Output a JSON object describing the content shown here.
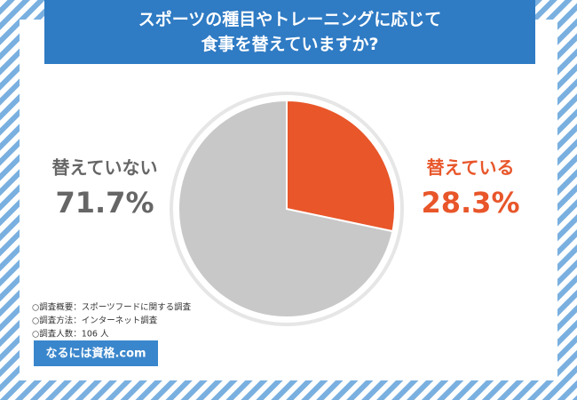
{
  "chart_data": {
    "type": "pie",
    "title": "スポーツの種目やトレーニングに応じて\n食事を替えていますか?",
    "categories": [
      "替えている",
      "替えていない"
    ],
    "values": [
      28.3,
      71.7
    ],
    "value_labels": [
      "28.3%",
      "71.7%"
    ],
    "colors": [
      "#e8562a",
      "#c8c8c8"
    ],
    "label_colors": [
      "#e8562a",
      "#666666"
    ],
    "notes": [
      "○調査概要：スポーツフードに関する調査",
      "○調査方法：インターネット調査",
      "○調査人数：106 人"
    ],
    "button": "なるには資格.com"
  }
}
